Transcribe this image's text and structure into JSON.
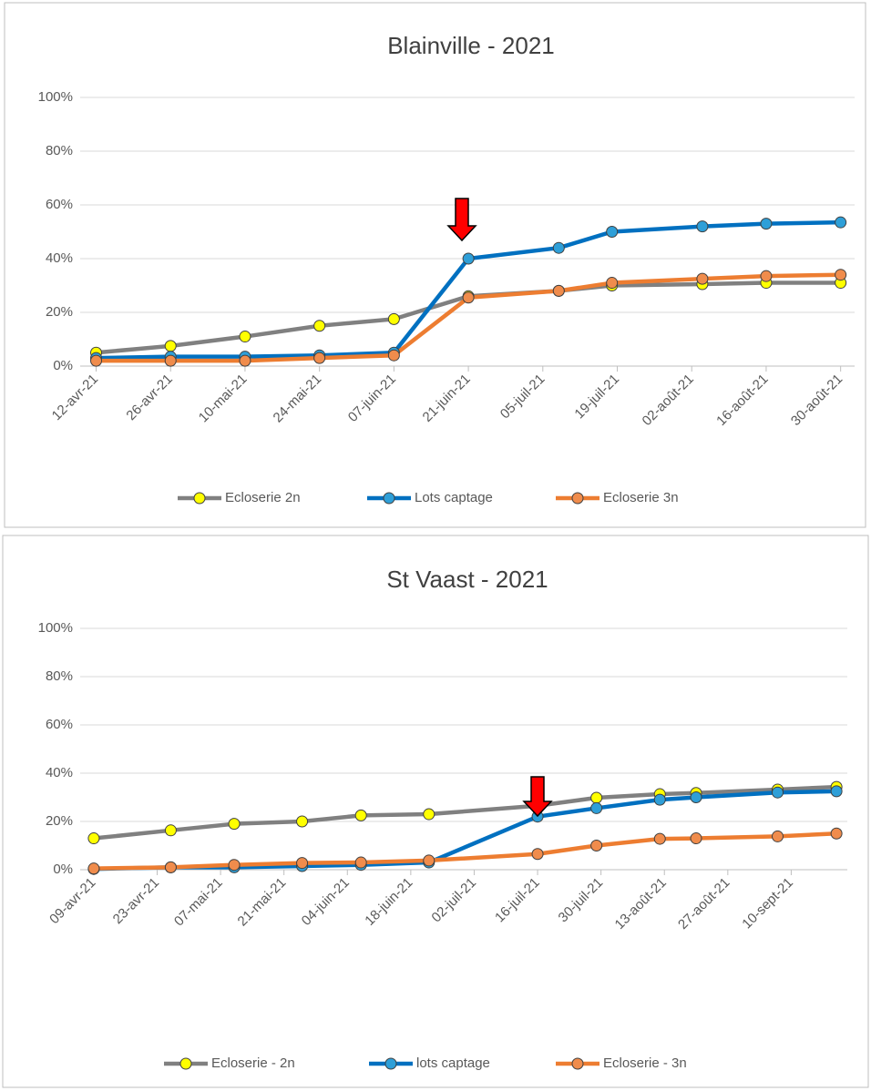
{
  "chart_data": [
    {
      "type": "line",
      "title": "Blainville - 2021",
      "x": [
        "2021-04-12",
        "2021-04-26",
        "2021-05-10",
        "2021-05-24",
        "2021-06-07",
        "2021-06-21",
        "2021-07-08",
        "2021-07-18",
        "2021-08-04",
        "2021-08-16",
        "2021-08-30"
      ],
      "series": [
        {
          "name": "Ecloserie 2n",
          "color": "#808080",
          "marker_color": "#ffff00",
          "values": [
            5,
            7.5,
            11,
            15,
            17.5,
            26,
            28,
            30,
            30.5,
            31,
            31
          ]
        },
        {
          "name": "Lots captage",
          "color": "#0070c0",
          "marker_color": "#2e9fd8",
          "values": [
            3,
            3.5,
            3.5,
            4,
            5,
            40,
            44,
            50,
            52,
            53,
            53.5
          ]
        },
        {
          "name": "Ecloserie 3n",
          "color": "#ed7d31",
          "marker_color": "#f08c4c",
          "values": [
            2,
            2,
            2,
            3,
            4,
            25.5,
            28,
            31,
            32.5,
            33.5,
            34
          ]
        }
      ],
      "xlim": [
        "2021-04-09",
        "2021-09-03"
      ],
      "xticks": [
        {
          "value": "2021-04-12",
          "label": "12-avr-21"
        },
        {
          "value": "2021-04-26",
          "label": "26-avr-21"
        },
        {
          "value": "2021-05-10",
          "label": "10-mai-21"
        },
        {
          "value": "2021-05-24",
          "label": "24-mai-21"
        },
        {
          "value": "2021-06-07",
          "label": "07-juin-21"
        },
        {
          "value": "2021-06-21",
          "label": "21-juin-21"
        },
        {
          "value": "2021-07-05",
          "label": "05-juil-21"
        },
        {
          "value": "2021-07-19",
          "label": "19-juil-21"
        },
        {
          "value": "2021-08-02",
          "label": "02-août-21"
        },
        {
          "value": "2021-08-16",
          "label": "16-août-21"
        },
        {
          "value": "2021-08-30",
          "label": "30-août-21"
        }
      ],
      "ylim": [
        0,
        100
      ],
      "yticks": [
        {
          "value": 0,
          "label": "0%"
        },
        {
          "value": 20,
          "label": "20%"
        },
        {
          "value": 40,
          "label": "40%"
        },
        {
          "value": 60,
          "label": "60%"
        },
        {
          "value": 80,
          "label": "80%"
        },
        {
          "value": 100,
          "label": "100%"
        }
      ],
      "grid": true,
      "legend": "bottom"
    },
    {
      "type": "line",
      "title": "St Vaast - 2021",
      "x": [
        "2021-04-09",
        "2021-04-26",
        "2021-05-10",
        "2021-05-25",
        "2021-06-07",
        "2021-06-22",
        "2021-07-16",
        "2021-07-29",
        "2021-08-12",
        "2021-08-20",
        "2021-09-07",
        "2021-09-20"
      ],
      "series": [
        {
          "name": "Ecloserie - 2n",
          "color": "#808080",
          "marker_color": "#ffff00",
          "values": [
            13,
            16.3,
            19,
            20,
            22.5,
            23,
            26.5,
            29.8,
            31.3,
            31.8,
            33.2,
            34.3
          ]
        },
        {
          "name": "lots captage",
          "color": "#0070c0",
          "marker_color": "#2e9fd8",
          "values": [
            0.3,
            1,
            1,
            1.5,
            2,
            3,
            22,
            25.5,
            29,
            30,
            32,
            32.5
          ]
        },
        {
          "name": "Ecloserie - 3n",
          "color": "#ed7d31",
          "marker_color": "#f08c4c",
          "values": [
            0.5,
            1,
            2,
            2.8,
            3,
            3.8,
            6.5,
            10,
            12.8,
            13,
            13.8,
            15
          ]
        }
      ],
      "xlim": [
        "2021-04-06",
        "2021-09-24"
      ],
      "xticks": [
        {
          "value": "2021-04-09",
          "label": "09-avr-21"
        },
        {
          "value": "2021-04-23",
          "label": "23-avr-21"
        },
        {
          "value": "2021-05-07",
          "label": "07-mai-21"
        },
        {
          "value": "2021-05-21",
          "label": "21-mai-21"
        },
        {
          "value": "2021-06-04",
          "label": "04-juin-21"
        },
        {
          "value": "2021-06-18",
          "label": "18-juin-21"
        },
        {
          "value": "2021-07-02",
          "label": "02-juil-21"
        },
        {
          "value": "2021-07-16",
          "label": "16-juil-21"
        },
        {
          "value": "2021-07-30",
          "label": "30-juil-21"
        },
        {
          "value": "2021-08-13",
          "label": "13-août-21"
        },
        {
          "value": "2021-08-27",
          "label": "27-août-21"
        },
        {
          "value": "2021-09-10",
          "label": "10-sept-21"
        }
      ],
      "ylim": [
        0,
        100
      ],
      "yticks": [
        {
          "value": 0,
          "label": "0%"
        },
        {
          "value": 20,
          "label": "20%"
        },
        {
          "value": 40,
          "label": "40%"
        },
        {
          "value": 60,
          "label": "60%"
        },
        {
          "value": 80,
          "label": "80%"
        },
        {
          "value": 100,
          "label": "100%"
        }
      ],
      "grid": true,
      "legend": "bottom"
    }
  ]
}
